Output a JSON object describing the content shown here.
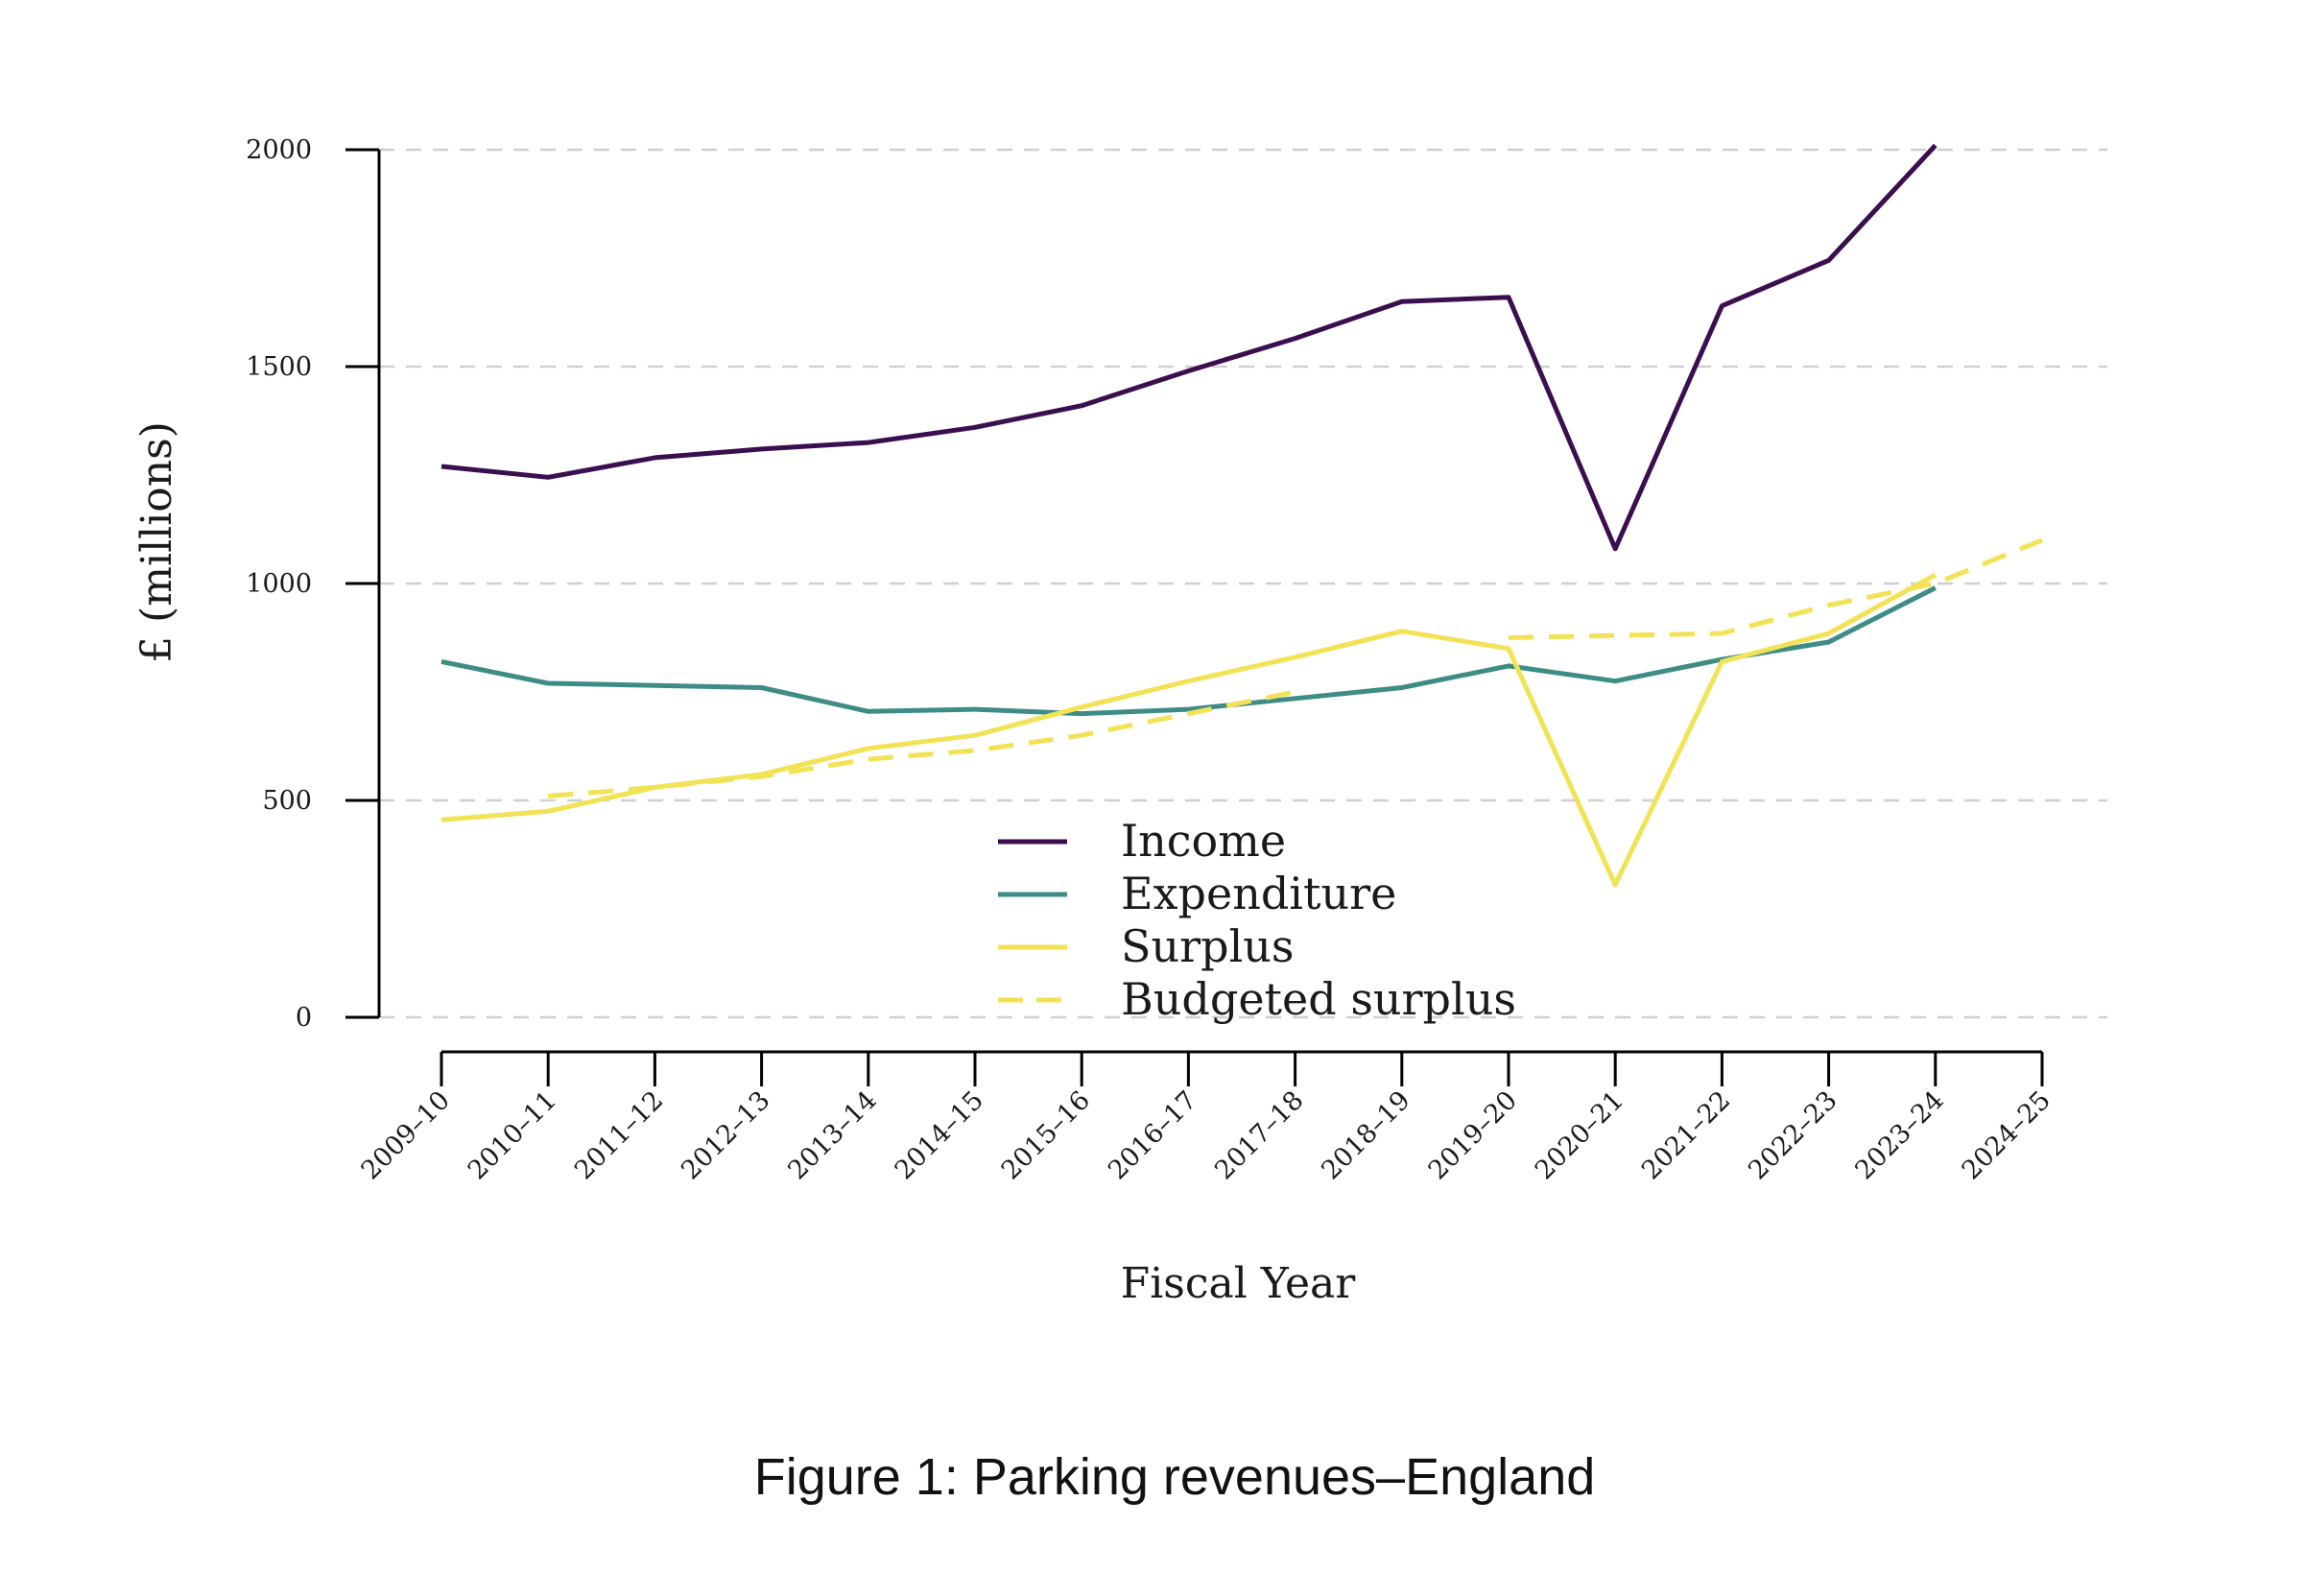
{
  "chart_data": {
    "type": "line",
    "title": "",
    "caption": "Figure 1: Parking revenues–England",
    "xlabel": "Fiscal Year",
    "ylabel": "£ (millions)",
    "ylim": [
      0,
      2000
    ],
    "yticks": [
      "0",
      "500",
      "1000",
      "1500",
      "2000"
    ],
    "grid": "horizontal dashed",
    "legend_position": "bottom-center",
    "categories": [
      "2009–10",
      "2010–11",
      "2011–12",
      "2012–13",
      "2013–14",
      "2014–15",
      "2015–16",
      "2016–17",
      "2017–18",
      "2018–19",
      "2019–20",
      "2020–21",
      "2021–22",
      "2022–23",
      "2023–24",
      "2024–25"
    ],
    "series": [
      {
        "name": "Income",
        "color": "#3b0f4f",
        "style": "solid",
        "values": [
          1270,
          1245,
          1290,
          1310,
          1325,
          1360,
          1410,
          1490,
          1565,
          1650,
          1660,
          1080,
          1640,
          1745,
          2010,
          null
        ]
      },
      {
        "name": "Expenditure",
        "color": "#3d8c86",
        "style": "solid",
        "values": [
          820,
          770,
          765,
          760,
          705,
          710,
          700,
          710,
          735,
          760,
          810,
          775,
          825,
          865,
          990,
          null
        ]
      },
      {
        "name": "Surplus",
        "color": "#f2e255",
        "style": "solid",
        "values": [
          455,
          475,
          530,
          560,
          620,
          650,
          715,
          775,
          830,
          890,
          850,
          305,
          820,
          885,
          1020,
          null
        ]
      },
      {
        "name": "Budgeted surplus",
        "color": "#f2e255",
        "style": "dashed",
        "values": [
          null,
          510,
          530,
          555,
          595,
          615,
          650,
          700,
          750,
          null,
          875,
          880,
          885,
          950,
          1000,
          1100
        ]
      }
    ]
  }
}
